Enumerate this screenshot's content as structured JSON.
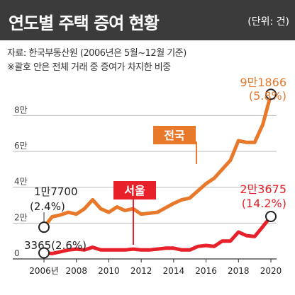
{
  "header": {
    "title": "연도별 주택 증여 현황",
    "unit": "(단위: 건)"
  },
  "notes": {
    "source": "자료: 한국부동산원 (2006년은 5월~12월 기준)",
    "paren": "※괄호 안은 전체 거래 중 증여가 차지한 비중"
  },
  "chart_data": {
    "type": "line",
    "title": "연도별 주택 증여 현황",
    "xlabel": "",
    "ylabel": "",
    "x_tick_labels": [
      "2006년",
      "2008",
      "2010",
      "2012",
      "2014",
      "2016",
      "2018",
      "2020"
    ],
    "y_tick_labels": [
      "0",
      "2만",
      "4만",
      "6만",
      "8만"
    ],
    "xlim": [
      2006,
      2020
    ],
    "ylim": [
      0,
      90000
    ],
    "grid": "horizontal",
    "series": [
      {
        "name": "전국",
        "color": "#e8782a",
        "x": [
          2006,
          2006.5,
          2007,
          2007.5,
          2008,
          2008.5,
          2009,
          2009.5,
          2010,
          2010.5,
          2011,
          2011.5,
          2012,
          2012.5,
          2013,
          2013.5,
          2014,
          2014.5,
          2015,
          2015.5,
          2016,
          2016.5,
          2017,
          2017.5,
          2018,
          2018.5,
          2019,
          2019.5,
          2020
        ],
        "values": [
          17700,
          23500,
          24500,
          26000,
          25000,
          28000,
          33000,
          28000,
          26000,
          29000,
          27000,
          28000,
          25000,
          25500,
          26000,
          28500,
          31000,
          33000,
          34000,
          38000,
          42000,
          45000,
          50000,
          55000,
          66000,
          65000,
          65000,
          75000,
          91866
        ]
      },
      {
        "name": "서울",
        "color": "#e8202a",
        "x": [
          2006,
          2006.5,
          2007,
          2007.5,
          2008,
          2008.5,
          2009,
          2009.5,
          2010,
          2010.5,
          2011,
          2011.5,
          2012,
          2012.5,
          2013,
          2013.5,
          2014,
          2014.5,
          2015,
          2015.5,
          2016,
          2016.5,
          2017,
          2017.5,
          2018,
          2018.5,
          2019,
          2019.5,
          2020
        ],
        "values": [
          3365,
          3000,
          4000,
          5000,
          5500,
          5000,
          6500,
          5000,
          5000,
          5000,
          5000,
          5500,
          5000,
          5000,
          5500,
          6000,
          6000,
          5000,
          5000,
          7000,
          7500,
          7000,
          10000,
          10000,
          15000,
          13000,
          12500,
          18000,
          23675
        ]
      }
    ],
    "annotations": [
      {
        "text": "1만7700",
        "sub": "(2.4%)"
      },
      {
        "text": "3365(2.6%)"
      },
      {
        "text": "9만1866",
        "sub": "(5.8%)"
      },
      {
        "text": "2만3675",
        "sub": "(14.2%)"
      }
    ],
    "series_labels": {
      "nation": "전국",
      "seoul": "서울"
    }
  }
}
